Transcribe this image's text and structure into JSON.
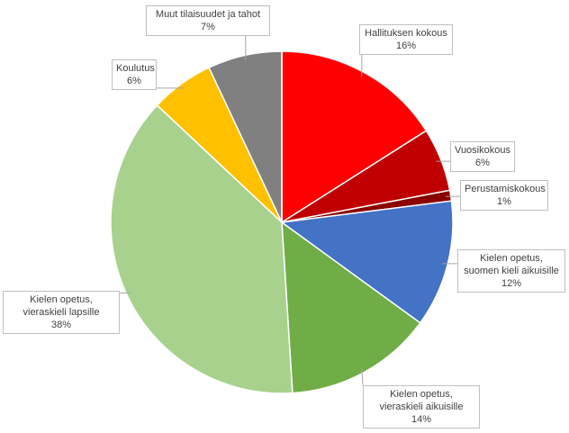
{
  "chart_data": {
    "type": "pie",
    "categories": [
      "Hallituksen kokous",
      "Vuosikokous",
      "Perustamiskokous",
      "Kielen opetus, suomen kieli aikuisille",
      "Kielen opetus, vieraskieli aikuisille",
      "Kielen opetus, vieraskieli lapsille",
      "Koulutus",
      "Muut tilaisuudet ja tahot"
    ],
    "values": [
      16,
      6,
      1,
      12,
      14,
      38,
      6,
      7
    ],
    "value_labels": [
      "16%",
      "6%",
      "1%",
      "12%",
      "14%",
      "38%",
      "6%",
      "7%"
    ],
    "colors": [
      "#ff0000",
      "#c00000",
      "#8b0000",
      "#4472c4",
      "#70ad47",
      "#a9d18e",
      "#ffc000",
      "#808080"
    ]
  }
}
